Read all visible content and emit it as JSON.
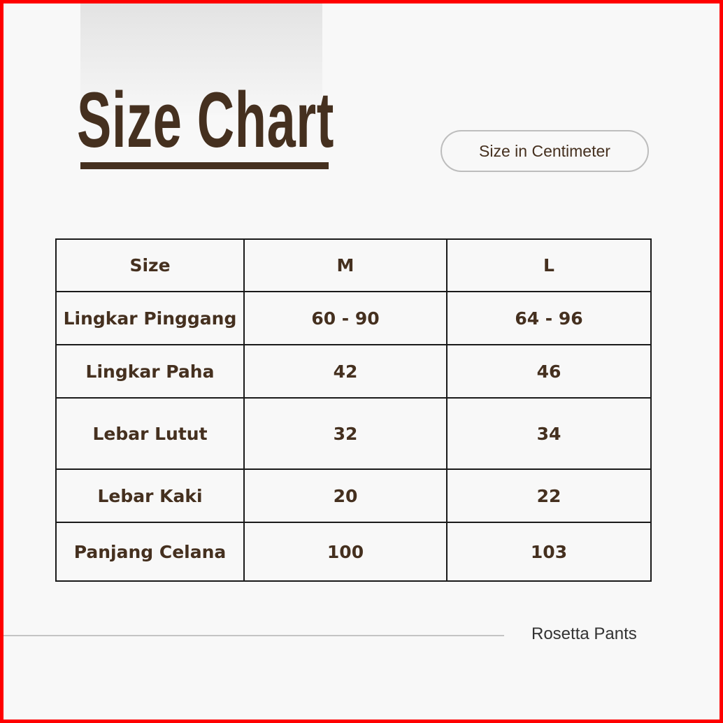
{
  "title": "Size Chart",
  "unit_badge": "Size in Centimeter",
  "table": {
    "header": [
      "Size",
      "M",
      "L"
    ],
    "rows": [
      [
        "Lingkar Pinggang",
        "60 - 90",
        "64 - 96"
      ],
      [
        "Lingkar Paha",
        "42",
        "46"
      ],
      [
        "Lebar Lutut",
        "32",
        "34"
      ],
      [
        "Lebar Kaki",
        "20",
        "22"
      ],
      [
        "Panjang Celana",
        "100",
        "103"
      ]
    ]
  },
  "footer": {
    "product_name": "Rosetta Pants"
  },
  "colors": {
    "text": "#45301f",
    "border": "#ff0000",
    "background": "#f8f8f8"
  }
}
